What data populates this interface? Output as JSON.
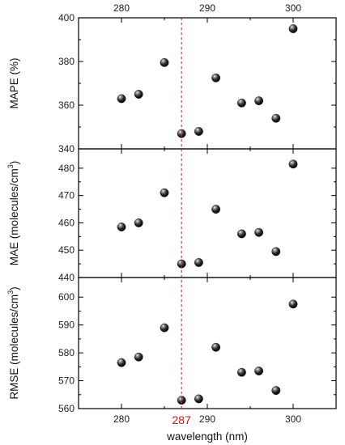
{
  "chart_data": {
    "type": "scatter",
    "shared_x": {
      "label": "wavelength (nm)",
      "range": [
        275,
        305
      ],
      "ticks": [
        280,
        290,
        300
      ],
      "tick_labels": [
        "280",
        "290",
        "300"
      ],
      "values": [
        280,
        282,
        285,
        287,
        289,
        291,
        294,
        296,
        298,
        300
      ]
    },
    "reference_line": {
      "x": 287,
      "label": "287",
      "color": "#e01010",
      "style": "dashed"
    },
    "panels": [
      {
        "ylabel": "MAPE (%)",
        "ylim": [
          340,
          400
        ],
        "yticks": [
          340,
          360,
          380,
          400
        ],
        "ytick_labels": [
          "340",
          "360",
          "380",
          "400"
        ],
        "y": [
          363,
          365,
          379.5,
          347,
          348,
          372.5,
          361,
          362,
          354,
          395
        ]
      },
      {
        "ylabel": "MAE (molecules/cm",
        "ylabel_sup": "3",
        "ylabel_end": ")",
        "ylim": [
          440,
          485
        ],
        "yticks": [
          440,
          450,
          460,
          470,
          480
        ],
        "ytick_labels": [
          "440",
          "450",
          "460",
          "470",
          "480"
        ],
        "y": [
          458.5,
          460,
          471,
          445,
          445.5,
          465,
          456,
          456.5,
          449.5,
          481.5
        ]
      },
      {
        "ylabel": "RMSE (molecules/cm",
        "ylabel_sup": "3",
        "ylabel_end": ")",
        "ylim": [
          560,
          605
        ],
        "yticks": [
          560,
          570,
          580,
          590,
          600
        ],
        "ytick_labels": [
          "560",
          "570",
          "580",
          "590",
          "600"
        ],
        "y": [
          576.5,
          578.5,
          589,
          563,
          563.5,
          582,
          573,
          573.5,
          566.5,
          597.5
        ]
      }
    ],
    "marker_color": "#111111",
    "grid": false,
    "legend": "none"
  }
}
